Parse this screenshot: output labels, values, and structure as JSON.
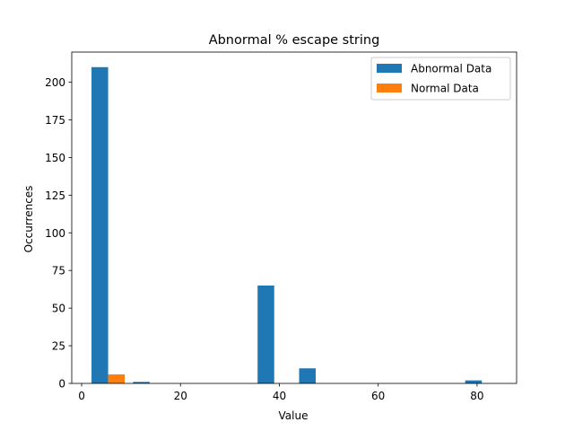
{
  "chart_data": {
    "type": "bar",
    "title": "Abnormal % escape string",
    "xlabel": "Value",
    "ylabel": "Occurrences",
    "xlim": [
      -2,
      88
    ],
    "ylim": [
      0,
      220
    ],
    "xticks": [
      0,
      20,
      40,
      60,
      80
    ],
    "yticks": [
      0,
      25,
      50,
      75,
      100,
      125,
      150,
      175,
      200
    ],
    "grid": false,
    "legend_position": "top-right",
    "bin_edges": [
      2,
      10.4,
      18.8,
      27.2,
      35.6,
      44,
      52.4,
      60.8,
      69.2,
      77.6,
      86
    ],
    "series": [
      {
        "name": "Abnormal Data",
        "color": "#1f77b4",
        "values": [
          210,
          1,
          0,
          0,
          65,
          10,
          0,
          0,
          0,
          2
        ]
      },
      {
        "name": "Normal Data",
        "color": "#ff7f0e",
        "values": [
          6,
          0,
          0,
          0,
          0,
          0,
          0,
          0,
          0,
          0
        ]
      }
    ]
  }
}
